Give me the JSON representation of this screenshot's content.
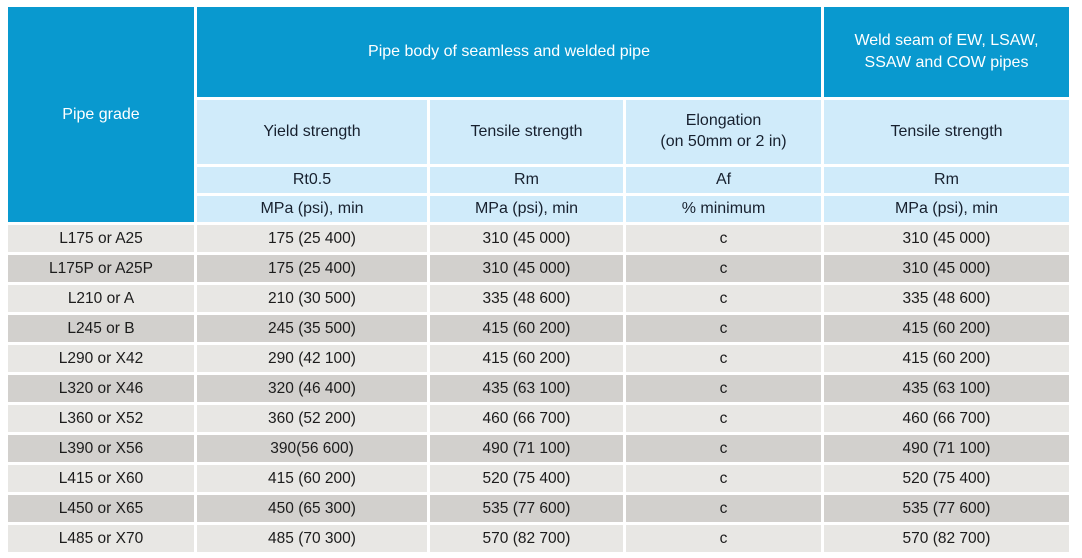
{
  "colors": {
    "header_bg": "#0999cf",
    "subheader_bg": "#d0ebfa",
    "row_light": "#e8e7e4",
    "row_dark": "#d2d0cd",
    "header_text": "#ffffff",
    "subheader_text": "#17202e",
    "body_text": "#1c1c1c",
    "page_bg": "#ffffff"
  },
  "table": {
    "corner_header": "Pipe grade",
    "group_headers": [
      {
        "label": "Pipe body of seamless and welded pipe",
        "span": 3
      },
      {
        "label": "Weld seam of EW, LSAW,\nSSAW and COW pipes",
        "span": 1
      }
    ],
    "sub_headers": [
      "Yield strength",
      "Tensile strength",
      "Elongation\n(on 50mm or 2 in)",
      "Tensile strength"
    ],
    "symbol_row": [
      "Rt0.5",
      "Rm",
      "Af",
      "Rm"
    ],
    "unit_row": [
      "MPa (psi), min",
      "MPa (psi), min",
      "% minimum",
      "MPa (psi), min"
    ],
    "columns": [
      "grade",
      "yield",
      "tensile",
      "elongation",
      "weld_tensile"
    ],
    "rows": [
      {
        "grade": "L175 or A25",
        "yield": "175 (25 400)",
        "tensile": "310 (45 000)",
        "elongation": "c",
        "weld_tensile": "310 (45 000)"
      },
      {
        "grade": "L175P or A25P",
        "yield": "175 (25 400)",
        "tensile": "310 (45 000)",
        "elongation": "c",
        "weld_tensile": "310 (45 000)"
      },
      {
        "grade": "L210 or A",
        "yield": "210 (30 500)",
        "tensile": "335 (48 600)",
        "elongation": "c",
        "weld_tensile": "335 (48 600)"
      },
      {
        "grade": "L245 or B",
        "yield": "245 (35 500)",
        "tensile": "415 (60 200)",
        "elongation": "c",
        "weld_tensile": "415 (60 200)"
      },
      {
        "grade": "L290 or X42",
        "yield": "290 (42 100)",
        "tensile": "415 (60 200)",
        "elongation": "c",
        "weld_tensile": "415 (60 200)"
      },
      {
        "grade": "L320 or X46",
        "yield": "320 (46 400)",
        "tensile": "435 (63 100)",
        "elongation": "c",
        "weld_tensile": "435 (63 100)"
      },
      {
        "grade": "L360 or X52",
        "yield": "360 (52 200)",
        "tensile": "460 (66 700)",
        "elongation": "c",
        "weld_tensile": "460 (66 700)"
      },
      {
        "grade": "L390 or X56",
        "yield": "390(56 600)",
        "tensile": "490 (71 100)",
        "elongation": "c",
        "weld_tensile": "490 (71 100)"
      },
      {
        "grade": "L415 or X60",
        "yield": "415 (60 200)",
        "tensile": "520 (75 400)",
        "elongation": "c",
        "weld_tensile": "520 (75 400)"
      },
      {
        "grade": "L450 or X65",
        "yield": "450 (65 300)",
        "tensile": "535 (77 600)",
        "elongation": "c",
        "weld_tensile": "535 (77 600)"
      },
      {
        "grade": "L485 or X70",
        "yield": "485 (70 300)",
        "tensile": "570 (82 700)",
        "elongation": "c",
        "weld_tensile": "570 (82 700)"
      }
    ]
  }
}
